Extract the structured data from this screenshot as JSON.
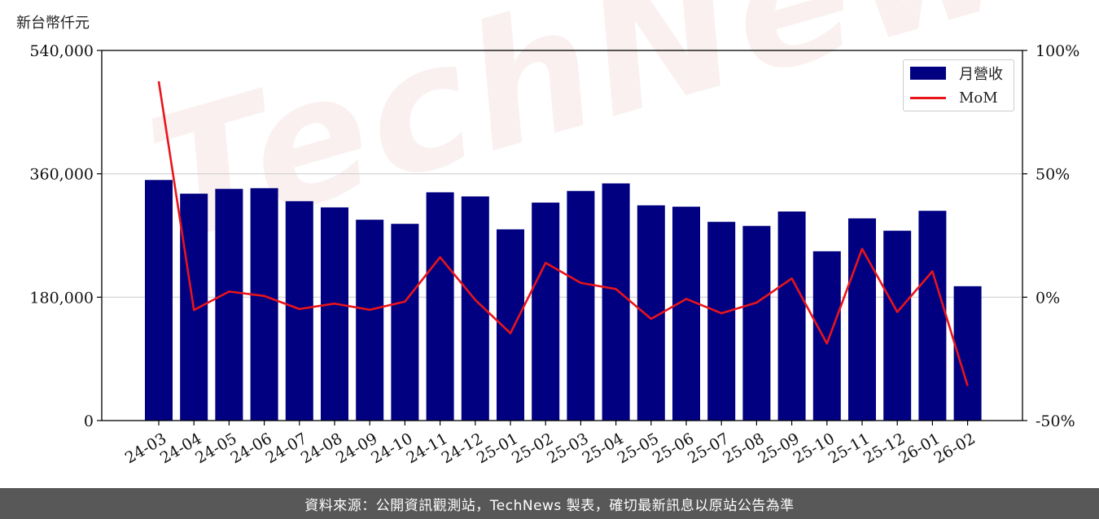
{
  "unit_label": "新台幣仟元",
  "footer": "資料來源：公開資訊觀測站，TechNews 製表，確切最新訊息以原站公告為準",
  "watermark": "TechNews",
  "colors": {
    "bar": "#000080",
    "line": "#e8141b",
    "footer_bg": "#585858"
  },
  "chart_data": {
    "type": "bar",
    "categories": [
      "24-03",
      "24-04",
      "24-05",
      "24-06",
      "24-07",
      "24-08",
      "24-09",
      "24-10",
      "24-11",
      "24-12",
      "25-01",
      "25-02",
      "25-03",
      "25-04",
      "25-05",
      "25-06",
      "25-07",
      "25-08",
      "25-09",
      "25-10",
      "25-11",
      "25-12",
      "26-01",
      "26-02"
    ],
    "series": [
      {
        "name": "月營收",
        "type": "bar",
        "axis": "left",
        "values": [
          351000,
          331000,
          338000,
          339000,
          320000,
          311000,
          293000,
          287000,
          333000,
          327000,
          279000,
          318000,
          335000,
          346000,
          314000,
          312000,
          290000,
          284000,
          305000,
          247000,
          295000,
          277000,
          306000,
          196000
        ]
      },
      {
        "name": "MoM",
        "type": "line",
        "axis": "right",
        "values": [
          87.5,
          -5.2,
          2.3,
          0.5,
          -4.8,
          -2.6,
          -5.1,
          -1.8,
          16.2,
          -1.1,
          -14.6,
          13.9,
          5.8,
          3.3,
          -8.8,
          -0.7,
          -6.5,
          -2.2,
          7.6,
          -18.8,
          19.6,
          -6.0,
          10.5,
          -35.9
        ]
      }
    ],
    "y_left": {
      "min": 0,
      "max": 540000,
      "ticks": [
        "0",
        "180,000",
        "360,000",
        "540,000"
      ]
    },
    "y_right": {
      "min": -50,
      "max": 100,
      "ticks": [
        "-50%",
        "0%",
        "50%",
        "100%"
      ]
    },
    "grid": "horizontal",
    "legend_position": "top-right"
  }
}
